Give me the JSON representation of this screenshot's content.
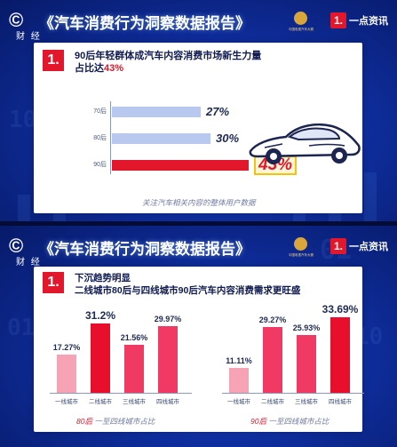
{
  "frame1": {
    "cctv_logo": "©",
    "cctv_sub": "财 经",
    "report_title": "《汽车消费行为洞察数据报告》",
    "brand_number": "1.",
    "brand_name": "一点资讯",
    "badge": "1.",
    "heading_line1": "90后年轻群体成汽车内容消费市场新生力量",
    "heading_line2_prefix": "占比达",
    "heading_line2_highlight": "43%",
    "caption": "关注汽车相关内容的整体用户数据",
    "colors": {
      "bar_light": "#b9c8ef",
      "bar_highlight": "#e3172b",
      "accent": "#e3172b"
    }
  },
  "frame2": {
    "cctv_logo": "©",
    "cctv_sub": "财 经",
    "report_title": "《汽车消费行为洞察数据报告》",
    "brand_number": "1.",
    "brand_name": "一点资讯",
    "badge": "1.",
    "heading_line1": "下沉趋势明显",
    "heading_line2": "二线城市80后与四线城市90后汽车内容消费需求更旺盛",
    "left_caption_highlight": "80后",
    "left_caption_rest": " 一至四线城市占比",
    "right_caption_highlight": "90后",
    "right_caption_rest": " 一至四线城市占比",
    "colors": {
      "bar_light": "#f7a3b6",
      "bar_mid": "#f03a63",
      "bar_strong": "#e80f2c"
    }
  },
  "chart_data": [
    {
      "type": "bar",
      "orientation": "horizontal",
      "categories": [
        "70后",
        "80后",
        "90后"
      ],
      "values": [
        27,
        30,
        43
      ],
      "value_labels": [
        "27%",
        "30%",
        "43%"
      ],
      "title": "90后年轻群体成汽车内容消费市场新生力量 占比达43%",
      "xlim": [
        0,
        50
      ]
    },
    {
      "type": "bar",
      "categories": [
        "一线城市",
        "二线城市",
        "三线城市",
        "四线城市"
      ],
      "values": [
        17.27,
        31.2,
        21.56,
        29.97
      ],
      "value_labels": [
        "17.27%",
        "31.2%",
        "21.56%",
        "29.97%"
      ],
      "title": "80后 一至四线城市占比",
      "ylim": [
        0,
        35
      ]
    },
    {
      "type": "bar",
      "categories": [
        "一线城市",
        "二线城市",
        "三线城市",
        "四线城市"
      ],
      "values": [
        11.11,
        29.27,
        25.93,
        33.69
      ],
      "value_labels": [
        "11.11%",
        "29.27%",
        "25.93%",
        "33.69%"
      ],
      "title": "90后 一至四线城市占比",
      "ylim": [
        0,
        35
      ]
    }
  ]
}
